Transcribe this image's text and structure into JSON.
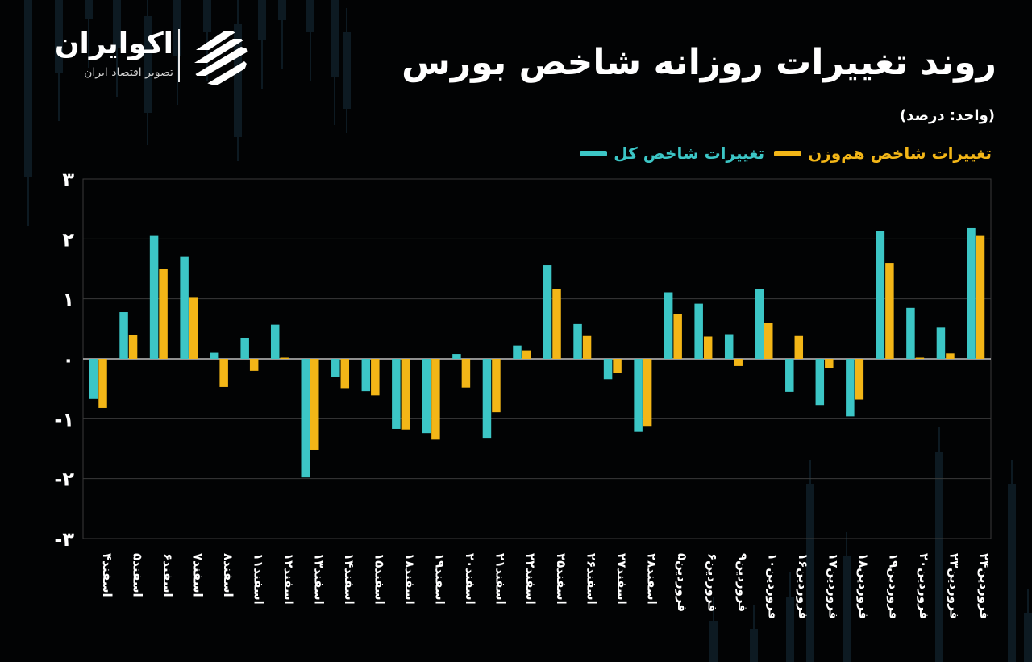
{
  "branding": {
    "name": "اکوایران",
    "tagline": "تصویر اقتصاد ایران",
    "logo_icon": "ecoiran-logo-icon"
  },
  "title": "روند تغییرات روزانه شاخص بورس",
  "unit_note": "(واحد: درصد)",
  "legend": [
    {
      "label": "تغییرات شاخص کل",
      "color": "#3cc6c6"
    },
    {
      "label": "تغییرات شاخص هم‌وزن",
      "color": "#f3b617"
    }
  ],
  "chart_data": {
    "type": "bar",
    "title": "روند تغییرات روزانه شاخص بورس",
    "ylabel": "",
    "xlabel": "",
    "ylim": [
      -3,
      3
    ],
    "yticks": [
      "۳",
      "۲",
      "۱",
      "۰",
      "-۱",
      "-۲",
      "-۳"
    ],
    "ytick_values": [
      3,
      2,
      1,
      0,
      -1,
      -2,
      -3
    ],
    "grid": true,
    "legend_position": "top-right",
    "categories": [
      "اسفند۴",
      "اسفند۵",
      "اسفند۶",
      "اسفند۷",
      "اسفند۸",
      "اسفند۱۱",
      "اسفند۱۲",
      "اسفند۱۳",
      "اسفند۱۴",
      "اسفند۱۵",
      "اسفند۱۸",
      "اسفند۱۹",
      "اسفند۲۰",
      "اسفند۲۱",
      "اسفند۲۲",
      "اسفند۲۵",
      "اسفند۲۶",
      "اسفند۲۷",
      "اسفند۲۸",
      "فروردین۵",
      "فروردین۶",
      "فروردین۹",
      "فروردین۱۰",
      "فروردین۱۶",
      "فروردین۱۷",
      "فروردین۱۸",
      "فروردین۱۹",
      "فروردین۲۰",
      "فروردین۲۳",
      "فروردین۲۴"
    ],
    "series": [
      {
        "name": "تغییرات شاخص کل",
        "color": "#3cc6c6",
        "values": [
          -0.67,
          0.78,
          2.05,
          1.7,
          0.1,
          0.35,
          0.57,
          -1.98,
          -0.3,
          -0.54,
          -1.17,
          -1.24,
          0.08,
          -1.32,
          0.22,
          1.56,
          0.58,
          -0.34,
          -1.22,
          1.11,
          0.92,
          0.41,
          1.16,
          -0.55,
          -0.77,
          -0.96,
          2.13,
          0.85,
          0.52,
          2.18
        ]
      },
      {
        "name": "تغییرات شاخص هم‌وزن",
        "color": "#f3b617",
        "values": [
          -0.82,
          0.4,
          1.5,
          1.03,
          -0.47,
          -0.2,
          0.02,
          -1.52,
          -0.49,
          -0.61,
          -1.18,
          -1.35,
          -0.48,
          -0.89,
          0.14,
          1.17,
          0.38,
          -0.23,
          -1.12,
          0.74,
          0.37,
          -0.12,
          0.6,
          0.38,
          -0.15,
          -0.68,
          1.6,
          0.02,
          0.09,
          2.05
        ]
      }
    ]
  }
}
